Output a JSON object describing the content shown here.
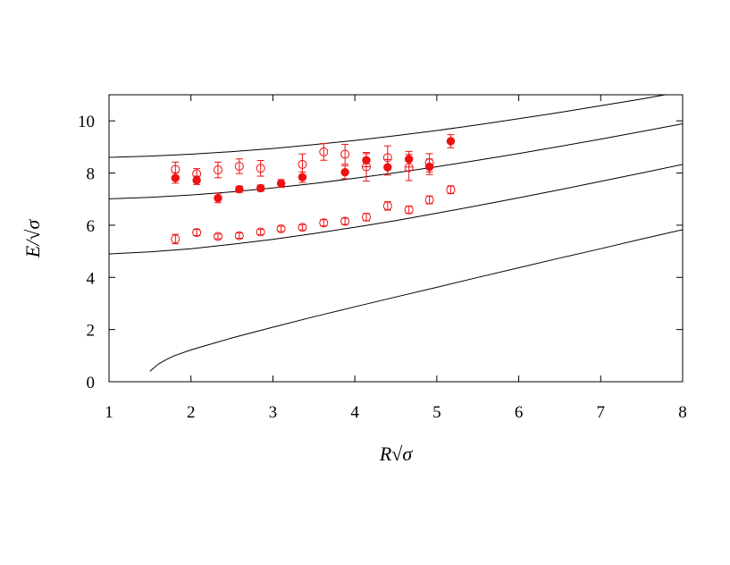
{
  "chart_data": {
    "type": "scatter",
    "title": "",
    "xlabel": "R√σ",
    "ylabel": "E/√σ",
    "xlim": [
      1,
      8
    ],
    "ylim": [
      0,
      11
    ],
    "xticks": [
      1,
      2,
      3,
      4,
      5,
      6,
      7,
      8
    ],
    "yticks": [
      0,
      2,
      4,
      6,
      8,
      10
    ],
    "grid": false,
    "legend": "none",
    "colors": {
      "data": "#ee1111",
      "curves": "#000000"
    },
    "curves": [
      {
        "n": 0,
        "points": [
          [
            1.5,
            0.4
          ],
          [
            1.6,
            0.67
          ],
          [
            1.7,
            0.85
          ],
          [
            1.8,
            1.0
          ],
          [
            2,
            1.22
          ],
          [
            2.5,
            1.68
          ],
          [
            3,
            2.09
          ],
          [
            3.5,
            2.49
          ],
          [
            4,
            2.87
          ],
          [
            4.5,
            3.25
          ],
          [
            5,
            3.62
          ],
          [
            5.5,
            4.0
          ],
          [
            6,
            4.37
          ],
          [
            6.5,
            4.74
          ],
          [
            7,
            5.1
          ],
          [
            7.5,
            5.47
          ],
          [
            8,
            5.83
          ]
        ]
      },
      {
        "n": 1,
        "points": [
          [
            1,
            4.9
          ],
          [
            1.5,
            4.98
          ],
          [
            2,
            5.1
          ],
          [
            2.5,
            5.27
          ],
          [
            3,
            5.46
          ],
          [
            3.5,
            5.68
          ],
          [
            4,
            5.92
          ],
          [
            4.5,
            6.18
          ],
          [
            5,
            6.46
          ],
          [
            5.5,
            6.75
          ],
          [
            6,
            7.05
          ],
          [
            6.5,
            7.36
          ],
          [
            7,
            7.68
          ],
          [
            7.5,
            8.0
          ],
          [
            8,
            8.33
          ]
        ]
      },
      {
        "n": 2,
        "points": [
          [
            1,
            7.01
          ],
          [
            1.5,
            7.07
          ],
          [
            2,
            7.16
          ],
          [
            2.5,
            7.28
          ],
          [
            3,
            7.43
          ],
          [
            3.5,
            7.6
          ],
          [
            4,
            7.8
          ],
          [
            4.5,
            8.01
          ],
          [
            5,
            8.24
          ],
          [
            5.5,
            8.49
          ],
          [
            6,
            8.75
          ],
          [
            6.5,
            9.02
          ],
          [
            7,
            9.3
          ],
          [
            7.5,
            9.59
          ],
          [
            8,
            9.89
          ]
        ]
      },
      {
        "n": 3,
        "points": [
          [
            1,
            8.6
          ],
          [
            1.5,
            8.65
          ],
          [
            2,
            8.72
          ],
          [
            2.5,
            8.82
          ],
          [
            3,
            8.94
          ],
          [
            3.5,
            9.09
          ],
          [
            4,
            9.25
          ],
          [
            4.5,
            9.43
          ],
          [
            5,
            9.63
          ],
          [
            5.5,
            9.85
          ],
          [
            6,
            10.08
          ],
          [
            6.5,
            10.32
          ],
          [
            7,
            10.58
          ],
          [
            7.5,
            10.84
          ],
          [
            8,
            11.12
          ]
        ]
      }
    ],
    "series": [
      {
        "marker": "open",
        "points": [
          {
            "x": 1.81,
            "y": 5.47,
            "err": 0.18
          },
          {
            "x": 2.07,
            "y": 5.72,
            "err": 0.12
          },
          {
            "x": 2.33,
            "y": 5.57,
            "err": 0.09
          },
          {
            "x": 2.59,
            "y": 5.6,
            "err": 0.1
          },
          {
            "x": 2.85,
            "y": 5.74,
            "err": 0.1
          },
          {
            "x": 3.1,
            "y": 5.86,
            "err": 0.1
          },
          {
            "x": 3.36,
            "y": 5.92,
            "err": 0.1
          },
          {
            "x": 3.62,
            "y": 6.09,
            "err": 0.12
          },
          {
            "x": 3.88,
            "y": 6.15,
            "err": 0.12
          },
          {
            "x": 4.14,
            "y": 6.31,
            "err": 0.14
          },
          {
            "x": 4.4,
            "y": 6.74,
            "err": 0.16
          },
          {
            "x": 4.66,
            "y": 6.59,
            "err": 0.14
          },
          {
            "x": 4.91,
            "y": 6.97,
            "err": 0.15
          },
          {
            "x": 5.17,
            "y": 7.36,
            "err": 0.15
          }
        ]
      },
      {
        "marker": "filled",
        "points": [
          {
            "x": 1.81,
            "y": 7.81,
            "err": 0.2
          },
          {
            "x": 2.07,
            "y": 7.72,
            "err": 0.16
          },
          {
            "x": 2.33,
            "y": 7.04,
            "err": 0.18
          },
          {
            "x": 2.59,
            "y": 7.38,
            "err": 0.12
          },
          {
            "x": 2.85,
            "y": 7.42,
            "err": 0.12
          },
          {
            "x": 3.1,
            "y": 7.6,
            "err": 0.15
          },
          {
            "x": 3.36,
            "y": 7.84,
            "err": 0.2
          },
          {
            "x": 3.88,
            "y": 8.03,
            "err": 0.25
          },
          {
            "x": 4.14,
            "y": 8.49,
            "err": 0.25
          },
          {
            "x": 4.4,
            "y": 8.22,
            "err": 0.3
          },
          {
            "x": 4.66,
            "y": 8.53,
            "err": 0.3
          },
          {
            "x": 4.91,
            "y": 8.24,
            "err": 0.3
          },
          {
            "x": 5.17,
            "y": 9.22,
            "err": 0.25
          }
        ]
      },
      {
        "marker": "open",
        "points": [
          {
            "x": 1.81,
            "y": 8.14,
            "err": 0.28
          },
          {
            "x": 2.07,
            "y": 7.97,
            "err": 0.2
          },
          {
            "x": 2.33,
            "y": 8.12,
            "err": 0.3
          },
          {
            "x": 2.59,
            "y": 8.26,
            "err": 0.28
          },
          {
            "x": 2.85,
            "y": 8.18,
            "err": 0.3
          },
          {
            "x": 3.36,
            "y": 8.33,
            "err": 0.4
          },
          {
            "x": 3.62,
            "y": 8.81,
            "err": 0.32
          },
          {
            "x": 3.88,
            "y": 8.72,
            "err": 0.38
          },
          {
            "x": 4.14,
            "y": 8.24,
            "err": 0.55
          },
          {
            "x": 4.4,
            "y": 8.59,
            "err": 0.45
          },
          {
            "x": 4.66,
            "y": 8.21,
            "err": 0.5
          },
          {
            "x": 4.91,
            "y": 8.39,
            "err": 0.35
          }
        ]
      }
    ]
  }
}
